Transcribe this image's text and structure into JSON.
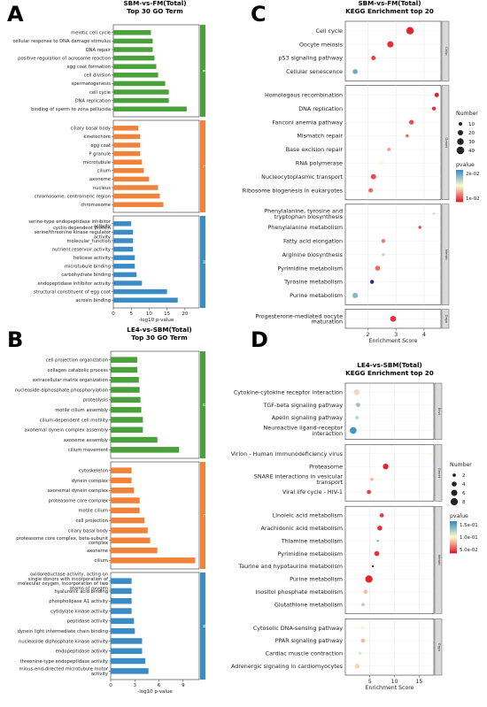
{
  "panel_letters": [
    "A",
    "B",
    "C",
    "D"
  ],
  "colors": {
    "group_1": "#4aa03a",
    "group_2": "#f0823a",
    "group_3": "#3b8cc4",
    "bp": "#4aa03a",
    "cc": "#f0823a",
    "mf": "#3b8cc4",
    "pv_low": "#e6222a",
    "pv_mid": "#fdfdd0",
    "pv_high": "#3a8fc4",
    "pv_dark": "#2a2a8a"
  },
  "chart_data": [
    {
      "id": "A",
      "type": "bar",
      "title": "SBM-vs-FM(Total)",
      "subtitle": "Top 30 GO Term",
      "xlabel": "-log10 p-value",
      "xlim": [
        0,
        24
      ],
      "xticks": [
        "0",
        "5",
        "10",
        "15",
        "20"
      ],
      "groups": [
        {
          "strip": "B",
          "color_key": "bp",
          "categories": [
            "meiotic cell cycle",
            "cellular response to DNA damage stimulus",
            "DNA repair",
            "positive regulation of acrosome reaction",
            "egg coat formation",
            "cell division",
            "spermatogenesis",
            "cell cycle",
            "DNA replication",
            "binding of sperm to zona pellucida"
          ],
          "values": [
            10.5,
            11,
            11,
            11.5,
            12,
            12.5,
            14.5,
            15.5,
            15.5,
            20.5
          ]
        },
        {
          "strip": "C",
          "color_key": "cc",
          "categories": [
            "ciliary basal body",
            "kinetochore",
            "egg coat",
            "P granule",
            "microtubule",
            "cilium",
            "axoneme",
            "nucleus",
            "chromosome, centromeric region",
            "chromosome"
          ],
          "values": [
            7,
            7.5,
            7.5,
            7.5,
            8,
            8.5,
            10,
            12.5,
            13,
            14
          ]
        },
        {
          "strip": "M",
          "color_key": "mf",
          "categories": [
            "serine-type endopeptidase inhibitor activity",
            "cyclin-dependent protein serine/threonine kinase regulator activity",
            "molecular_function",
            "nutrient reservoir activity",
            "helicase activity",
            "microtubule binding",
            "carbohydrate binding",
            "endopeptidase inhibitor activity",
            "structural constituent of egg coat",
            "acrosin binding"
          ],
          "values": [
            5,
            5.5,
            5.5,
            5.5,
            6,
            6,
            6.5,
            8,
            15,
            18
          ]
        }
      ]
    },
    {
      "id": "B",
      "type": "bar",
      "title": "LE4-vs-SBM(Total)",
      "subtitle": "Top 30 GO Term",
      "xlabel": "-log10 p-value",
      "xlim": [
        0,
        11
      ],
      "xticks": [
        "0",
        "3",
        "6",
        "9"
      ],
      "groups": [
        {
          "strip": "B",
          "color_key": "bp",
          "categories": [
            "cell projection organization",
            "collagen catabolic process",
            "extracellular matrix organization",
            "nucleoside diphosphate phosphorylation",
            "proteolysis",
            "motile cilium assembly",
            "cilium-dependent cell motility",
            "axonemal dynein complex assembly",
            "axoneme assembly",
            "cilium movement"
          ],
          "values": [
            3.3,
            3.3,
            3.5,
            3.6,
            3.7,
            3.8,
            4.0,
            4.0,
            5.8,
            8.5
          ]
        },
        {
          "strip": "C",
          "color_key": "cc",
          "categories": [
            "cytoskeleton",
            "dynein complex",
            "axonemal dynein complex",
            "proteasome core complex",
            "motile cilium",
            "cell projection",
            "ciliary basal body",
            "proteasome core complex, beta-subunit complex",
            "axoneme",
            "cilium"
          ],
          "values": [
            2.6,
            2.6,
            2.9,
            3.6,
            3.6,
            4.2,
            4.6,
            4.9,
            5.8,
            10.5
          ]
        },
        {
          "strip": "M",
          "color_key": "mf",
          "categories": [
            "oxidoreductase activity, acting on single donors with incorporation of molecular oxygen, incorporation of two atoms of oxygen",
            "hyaluronic acid binding",
            "phospholipase A1 activity",
            "cytidylate kinase activity",
            "peptidase activity",
            "dynein light intermediate chain binding",
            "nucleoside diphosphate kinase activity",
            "endopeptidase activity",
            "threonine-type endopeptidase activity",
            "minus-end-directed microtubule motor activity"
          ],
          "values": [
            2.6,
            2.6,
            2.6,
            2.6,
            2.9,
            3.0,
            3.9,
            3.9,
            4.3,
            4.7
          ]
        }
      ]
    },
    {
      "id": "C",
      "type": "scatter",
      "title": "SBM-vs-FM(Total)",
      "subtitle": "KEGG Enrichment top 20",
      "xlabel": "Enrichment Score",
      "xlim": [
        1.2,
        4.6
      ],
      "xticks": [
        2,
        3,
        4
      ],
      "size_legend_title": "Number",
      "size_legend": [
        10,
        20,
        30,
        40
      ],
      "size_range": [
        10,
        45
      ],
      "color_legend_title": "pvalue",
      "color_legend_labels": [
        "2e-02",
        "1e-02"
      ],
      "groups": [
        {
          "strip": "Cellp",
          "points": [
            {
              "label": "Cell cycle",
              "x": 3.5,
              "number": 38,
              "p": 0.001
            },
            {
              "label": "Oocyte meiosis",
              "x": 2.8,
              "number": 28,
              "p": 0.002
            },
            {
              "label": "p53 signaling pathway",
              "x": 2.2,
              "number": 15,
              "p": 0.003
            },
            {
              "label": "Cellular senescence",
              "x": 1.55,
              "number": 18,
              "p": 0.028
            }
          ]
        },
        {
          "strip": "Genet",
          "points": [
            {
              "label": "Homologous recombination",
              "x": 4.45,
              "number": 15,
              "p": 0.001
            },
            {
              "label": "DNA replication",
              "x": 4.35,
              "number": 12,
              "p": 0.002
            },
            {
              "label": "Fanconi anemia pathway",
              "x": 3.55,
              "number": 16,
              "p": 0.004
            },
            {
              "label": "Mismatch repair",
              "x": 3.4,
              "number": 8,
              "p": 0.006
            },
            {
              "label": "Base excision repair",
              "x": 2.75,
              "number": 10,
              "p": 0.01
            },
            {
              "label": "RNA polymerase",
              "x": 2.5,
              "number": 9,
              "p": 0.016
            },
            {
              "label": "Nucleocytoplasmic transport",
              "x": 2.2,
              "number": 20,
              "p": 0.004
            },
            {
              "label": "Ribosome biogenesis in eukaryotes",
              "x": 2.1,
              "number": 15,
              "p": 0.006
            }
          ]
        },
        {
          "strip": "Metab",
          "points": [
            {
              "label": "Phenylalanine, tyrosine and tryptophan biosynthesis",
              "x": 4.35,
              "number": 4,
              "p": 0.022
            },
            {
              "label": "Phenylalanine metabolism",
              "x": 3.85,
              "number": 8,
              "p": 0.004
            },
            {
              "label": "Fatty acid elongation",
              "x": 2.55,
              "number": 12,
              "p": 0.007
            },
            {
              "label": "Arginine biosynthesis",
              "x": 2.55,
              "number": 7,
              "p": 0.022
            },
            {
              "label": "Pyrimidine metabolism",
              "x": 2.35,
              "number": 18,
              "p": 0.006
            },
            {
              "label": "Tyrosine metabolism",
              "x": 2.15,
              "number": 12,
              "p": 0.034
            },
            {
              "label": "Purine metabolism",
              "x": 1.55,
              "number": 22,
              "p": 0.026
            }
          ]
        },
        {
          "strip": "Orga",
          "points": [
            {
              "label": "Progesterone-mediated oocyte maturation",
              "x": 2.9,
              "number": 25,
              "p": 0.002
            }
          ]
        }
      ]
    },
    {
      "id": "D",
      "type": "scatter",
      "title": "LE4-vs-SBM(Total)",
      "subtitle": "KEGG Enrichment top 20",
      "xlabel": "Enrichment Score",
      "xlim": [
        0,
        18
      ],
      "xticks": [
        5,
        10,
        15
      ],
      "size_legend_title": "Number",
      "size_legend": [
        2,
        4,
        6,
        8
      ],
      "size_range": [
        1,
        9
      ],
      "color_legend_title": "pvalue",
      "color_legend_labels": [
        "1.5e-01",
        "1.0e-01",
        "5.0e-02"
      ],
      "groups": [
        {
          "strip": "Envi",
          "points": [
            {
              "label": "Cytokine-cytokine receptor interaction",
              "x": 2.3,
              "number": 5,
              "p": 0.08
            },
            {
              "label": "TGF-beta signaling pathway",
              "x": 2.6,
              "number": 3,
              "p": 0.14
            },
            {
              "label": "Apelin signaling pathway",
              "x": 2.4,
              "number": 3,
              "p": 0.12
            },
            {
              "label": "Neuroactive ligand-receptor interaction",
              "x": 1.6,
              "number": 7,
              "p": 0.175
            }
          ]
        },
        {
          "strip": "Genet",
          "points": [
            {
              "label": "Virion - Human immunodeficiency virus",
              "x": 17.3,
              "number": 1,
              "p": 0.1
            },
            {
              "label": "Proteasome",
              "x": 8.2,
              "number": 5,
              "p": 0.01
            },
            {
              "label": "SNARE interactions in vesicular transport",
              "x": 5.4,
              "number": 2,
              "p": 0.07
            },
            {
              "label": "Viral life cycle - HIV-1",
              "x": 4.8,
              "number": 3,
              "p": 0.02
            }
          ]
        },
        {
          "strip": "Metab",
          "points": [
            {
              "label": "Linoleic acid metabolism",
              "x": 7.4,
              "number": 3,
              "p": 0.02
            },
            {
              "label": "Arachidonic acid metabolism",
              "x": 7.0,
              "number": 4,
              "p": 0.015
            },
            {
              "label": "Thiamine metabolism",
              "x": 6.6,
              "number": 1,
              "p": 0.16
            },
            {
              "label": "Pyrimidine metabolism",
              "x": 6.4,
              "number": 4,
              "p": 0.015
            },
            {
              "label": "Taurine and hypotaurine metabolism",
              "x": 5.6,
              "number": 1,
              "p": 0.19
            },
            {
              "label": "Purine metabolism",
              "x": 4.8,
              "number": 8,
              "p": 0.01
            },
            {
              "label": "Inositol phosphate metabolism",
              "x": 4.1,
              "number": 3,
              "p": 0.07
            },
            {
              "label": "Glutathione metabolism",
              "x": 3.6,
              "number": 2,
              "p": 0.13
            }
          ]
        },
        {
          "strip": "Orga",
          "points": [
            {
              "label": "Cytosolic DNA-sensing pathway",
              "x": 3.5,
              "number": 2,
              "p": 0.1
            },
            {
              "label": "PPAR signaling pathway",
              "x": 3.6,
              "number": 3,
              "p": 0.07
            },
            {
              "label": "Cardiac muscle contraction",
              "x": 3.0,
              "number": 2,
              "p": 0.11
            },
            {
              "label": "Adrenergic signaling in cardiomyocytes",
              "x": 2.4,
              "number": 4,
              "p": 0.08
            }
          ]
        }
      ]
    }
  ]
}
